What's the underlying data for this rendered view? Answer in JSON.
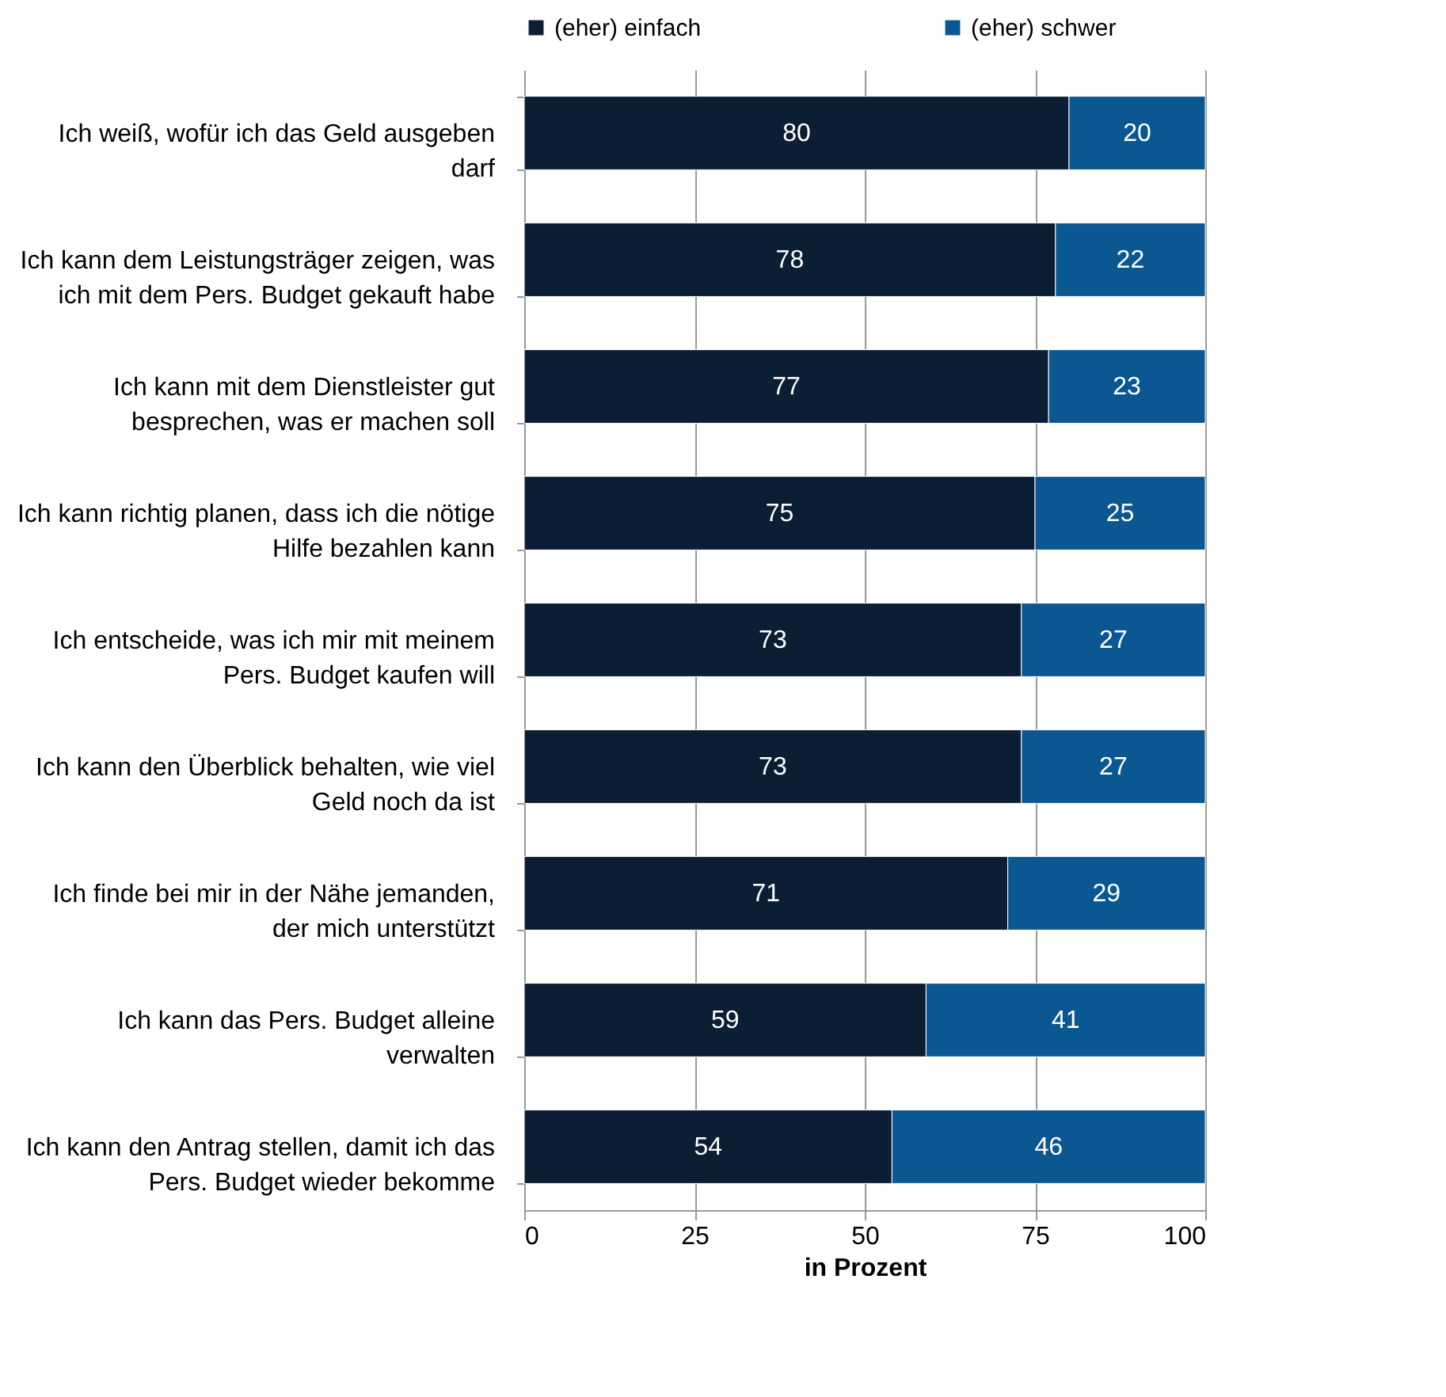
{
  "chart_data": {
    "type": "bar",
    "orientation": "horizontal",
    "stacked": true,
    "data_labels": true,
    "xlabel": "in Prozent",
    "categories": [
      "Ich weiß, wofür ich das Geld ausgeben\ndarf",
      "Ich kann dem Leistungsträger zeigen, was\nich mit dem Pers. Budget gekauft habe",
      "Ich kann mit dem Dienstleister gut\nbesprechen, was er machen soll",
      "Ich kann richtig planen, dass ich die nötige\nHilfe bezahlen kann",
      "Ich entscheide, was ich mir mit meinem\nPers. Budget kaufen will",
      "Ich kann den Überblick behalten, wie viel\nGeld noch da ist",
      "Ich finde bei mir in der Nähe jemanden,\nder mich unterstützt",
      "Ich kann das Pers. Budget alleine\nverwalten",
      "Ich kann den Antrag stellen, damit ich das\nPers. Budget wieder bekomme"
    ],
    "series": [
      {
        "name": "(eher) einfach",
        "color": "#0b1e33",
        "values": [
          80,
          78,
          77,
          75,
          73,
          73,
          71,
          59,
          54
        ]
      },
      {
        "name": "(eher) schwer",
        "color": "#0a5791",
        "values": [
          20,
          22,
          23,
          25,
          27,
          27,
          29,
          41,
          46
        ]
      }
    ],
    "xlim": [
      0,
      100
    ],
    "xticks": [
      0,
      25,
      50,
      75,
      100
    ],
    "grid": "x",
    "legend": "top"
  }
}
